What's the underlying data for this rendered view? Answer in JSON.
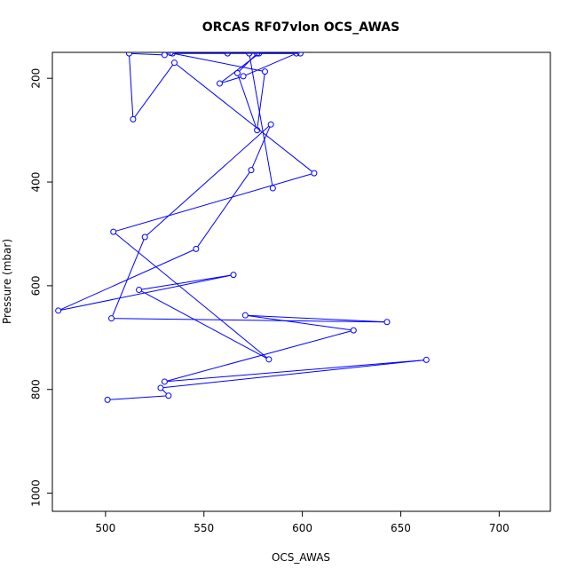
{
  "chart_data": {
    "type": "line",
    "title": "ORCAS RF07vlon OCS_AWAS",
    "xlabel": "OCS_AWAS",
    "ylabel": "Pressure (mbar)",
    "xlim": [
      473,
      726
    ],
    "ylim": [
      1035,
      150
    ],
    "y_reversed": true,
    "grid": false,
    "legend": "none",
    "x_ticks": [
      "500",
      "550",
      "600",
      "650",
      "700"
    ],
    "y_ticks": [
      "200",
      "400",
      "600",
      "800",
      "1000"
    ],
    "series": [
      {
        "name": "",
        "color": "#0000ff",
        "marker": "open-circle",
        "x": [
          501,
          532,
          528,
          663,
          530,
          626,
          571,
          643,
          503,
          520,
          584,
          574,
          546,
          476,
          565,
          517,
          583,
          504,
          606,
          535,
          514,
          512,
          530,
          533,
          581,
          577,
          567,
          577,
          599,
          578,
          558,
          570,
          597,
          562,
          534,
          573,
          585
        ],
        "y": [
          820,
          812,
          797,
          743,
          785,
          686,
          657,
          670,
          663,
          506,
          289,
          377,
          529,
          648,
          579,
          608,
          742,
          496,
          383,
          170,
          279,
          152,
          155,
          151,
          187,
          300,
          190,
          152,
          152,
          152,
          210,
          196,
          152,
          152,
          152,
          152,
          412
        ]
      }
    ]
  }
}
